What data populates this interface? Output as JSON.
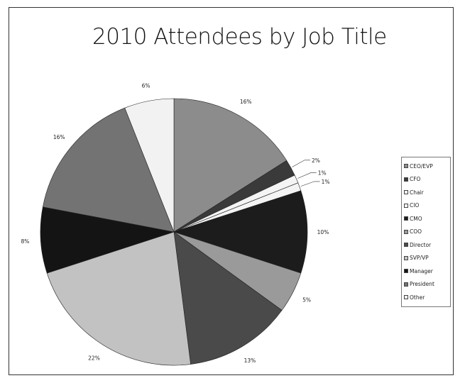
{
  "chart_data": {
    "type": "pie",
    "title": "2010 Attendees by Job Title",
    "categories": [
      "CEO/EVP",
      "CFO",
      "Chair",
      "CIO",
      "CMO",
      "COO",
      "Director",
      "SVP/VP",
      "Manager",
      "President",
      "Other"
    ],
    "values": [
      16,
      2,
      1,
      1,
      10,
      5,
      13,
      22,
      8,
      16,
      6
    ],
    "value_labels": [
      "16%",
      "2%",
      "1%",
      "1%",
      "10%",
      "5%",
      "13%",
      "22%",
      "8%",
      "16%",
      "6%"
    ],
    "colors": [
      "#8c8c8c",
      "#3a3a3a",
      "#f4f4f4",
      "#f4f4f4",
      "#1c1c1c",
      "#9a9a9a",
      "#4a4a4a",
      "#c2c2c2",
      "#141414",
      "#737373",
      "#f2f2f2"
    ],
    "legend": {
      "entries": [
        "CEO/EVP",
        "CFO",
        "Chair",
        "CIO",
        "CMO",
        "COO",
        "Director",
        "SVP/VP",
        "Manager",
        "President",
        "Other"
      ],
      "placement": "right"
    }
  }
}
